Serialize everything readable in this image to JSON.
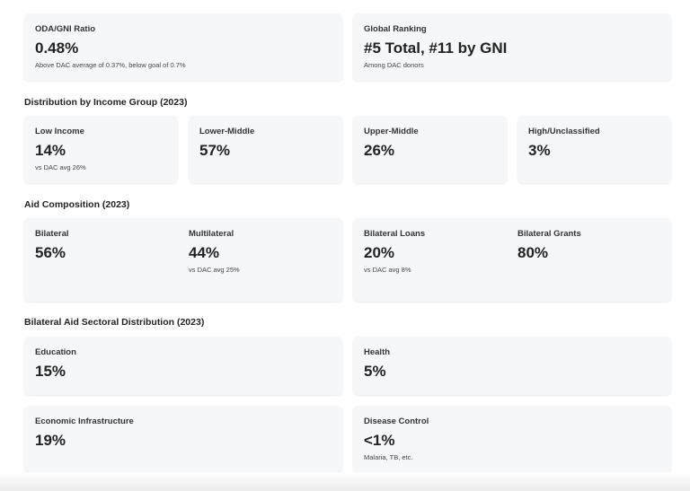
{
  "summary": {
    "cards": [
      {
        "label": "ODA/GNI Ratio",
        "value": "0.48%",
        "note": "Above DAC average of 0.37%, below goal of 0.7%"
      },
      {
        "label": "Global Ranking",
        "value": "#5 Total, #11 by GNI",
        "note": "Among DAC donors"
      }
    ]
  },
  "income": {
    "title": "Distribution by Income Group (2023)",
    "cards": [
      {
        "label": "Low Income",
        "value": "14%",
        "note": "vs DAC avg 26%"
      },
      {
        "label": "Lower-Middle",
        "value": "57%"
      },
      {
        "label": "Upper-Middle",
        "value": "26%"
      },
      {
        "label": "High/Unclassified",
        "value": "3%"
      }
    ]
  },
  "composition": {
    "title": "Aid Composition (2023)",
    "cards": [
      [
        {
          "label": "Bilateral",
          "value": "56%"
        },
        {
          "label": "Multilateral",
          "value": "44%",
          "note": "vs DAC avg 25%"
        }
      ],
      [
        {
          "label": "Bilateral Loans",
          "value": "20%",
          "note": "vs DAC avg 8%"
        },
        {
          "label": "Bilateral Grants",
          "value": "80%"
        }
      ]
    ]
  },
  "sectors": {
    "title": "Bilateral Aid Sectoral Distribution (2023)",
    "cards": [
      {
        "label": "Education",
        "value": "15%"
      },
      {
        "label": "Health",
        "value": "5%"
      },
      {
        "label": "Economic Infrastructure",
        "value": "19%"
      },
      {
        "label": "Disease Control",
        "value": "<1%",
        "note": "Malaria, TB, etc."
      }
    ]
  }
}
